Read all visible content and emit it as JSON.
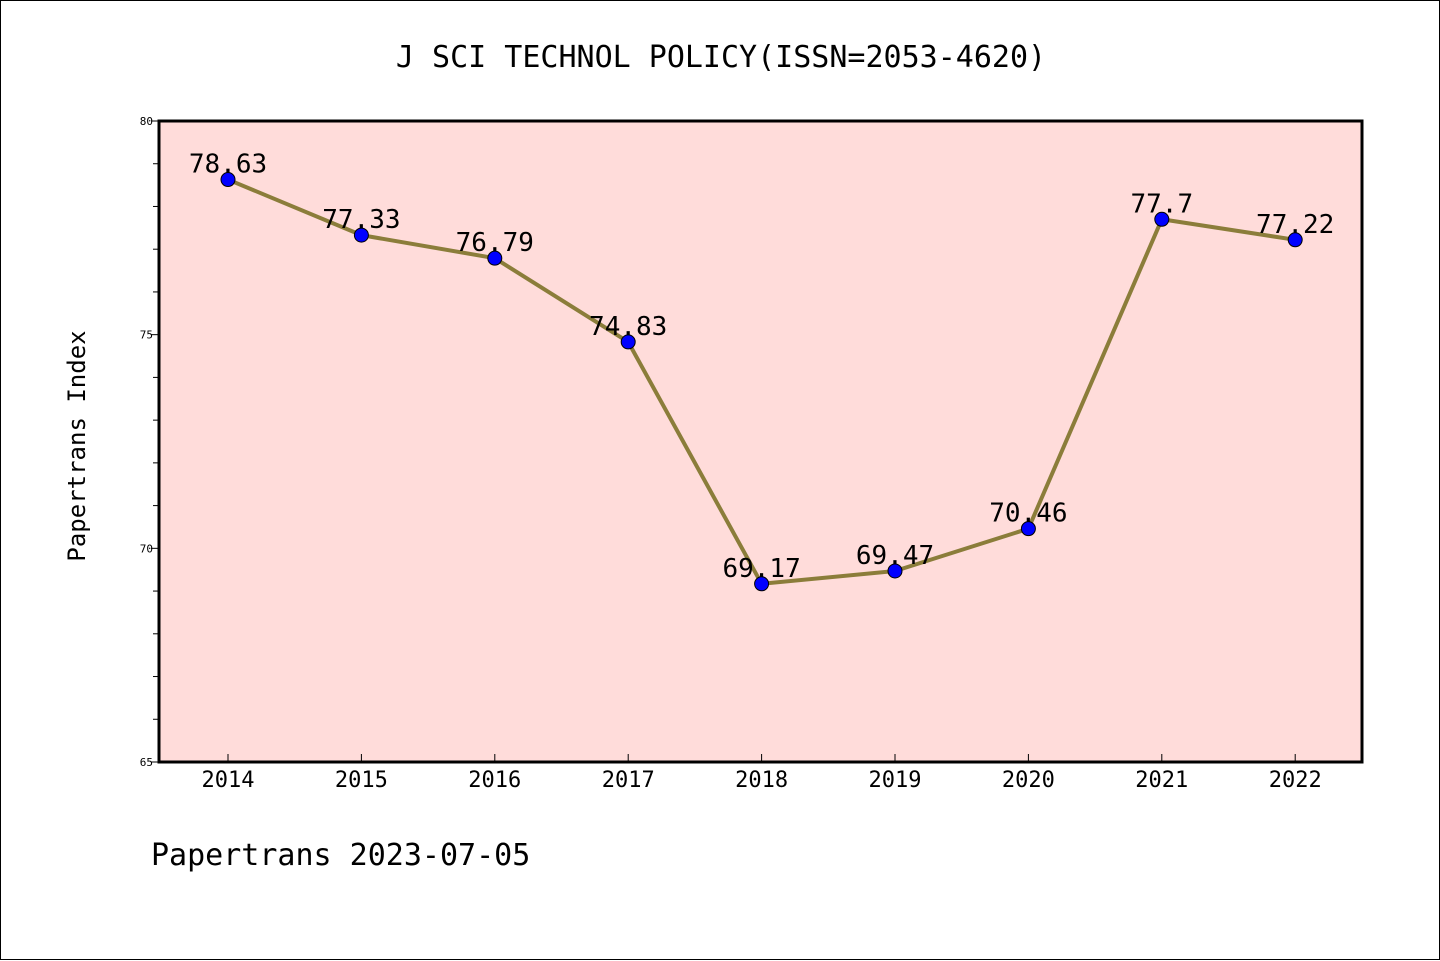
{
  "chart_data": {
    "type": "line",
    "title": "J SCI TECHNOL POLICY(ISSN=2053-4620)",
    "xlabel": "",
    "ylabel": "Papertrans Index",
    "categories": [
      "2014",
      "2015",
      "2016",
      "2017",
      "2018",
      "2019",
      "2020",
      "2021",
      "2022"
    ],
    "series": [
      {
        "values": [
          78.63,
          77.33,
          76.79,
          74.83,
          69.17,
          69.47,
          70.46,
          77.7,
          77.22
        ],
        "labels": [
          "78.63",
          "77.33",
          "76.79",
          "74.83",
          "69.17",
          "69.47",
          "70.46",
          "77.7",
          "77.22"
        ]
      }
    ],
    "ylim": [
      65,
      80
    ],
    "yticks": [
      "65",
      "70",
      "75",
      "80"
    ],
    "line_color": "#8B7D3A",
    "marker_color": "#0000FF",
    "background_color": "#FFDCDA",
    "grid": false
  },
  "footer": "Papertrans 2023-07-05"
}
